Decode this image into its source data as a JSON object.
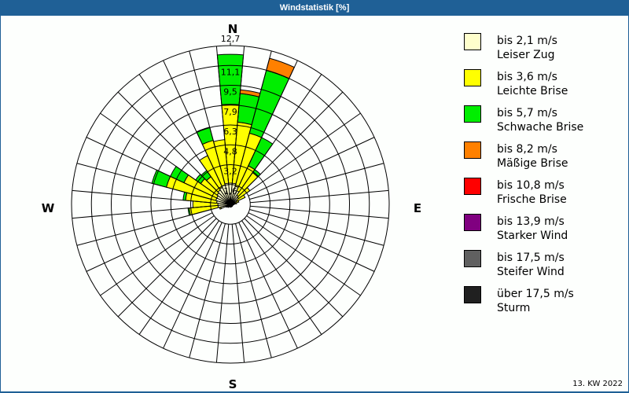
{
  "header": {
    "title": "Windstatistik [%]"
  },
  "footer": {
    "week_label": "13. KW 2022"
  },
  "compass": {
    "n": "N",
    "e": "E",
    "s": "S",
    "w": "W"
  },
  "legend": [
    {
      "speed": "bis 2,1 m/s",
      "name": "Leiser Zug",
      "color": "#ffffcc"
    },
    {
      "speed": "bis 3,6 m/s",
      "name": "Leichte Brise",
      "color": "#ffff00"
    },
    {
      "speed": "bis 5,7 m/s",
      "name": "Schwache Brise",
      "color": "#00ee00"
    },
    {
      "speed": "bis 8,2 m/s",
      "name": "Mäßige Brise",
      "color": "#ff8000"
    },
    {
      "speed": "bis 10,8 m/s",
      "name": "Frische Brise",
      "color": "#ff0000"
    },
    {
      "speed": "bis 13,9 m/s",
      "name": "Starker Wind",
      "color": "#800080"
    },
    {
      "speed": "bis 17,5 m/s",
      "name": "Steifer Wind",
      "color": "#606060"
    },
    {
      "speed": "über 17,5 m/s",
      "name": "Sturm",
      "color": "#202020"
    }
  ],
  "chart_data": {
    "type": "wind_rose",
    "title": "Windstatistik [%]",
    "ring_labels": [
      "1,6",
      "3,2",
      "4,8",
      "6,3",
      "7,9",
      "9,5",
      "11,1",
      "12,7"
    ],
    "rmax": 12.7,
    "sector_width_deg": 10,
    "series_names": [
      "Leiser Zug",
      "Leichte Brise",
      "Schwache Brise",
      "Mäßige Brise"
    ],
    "sectors": [
      {
        "dir": 0,
        "cum": [
          1.7,
          8.0,
          12.0,
          12.0
        ]
      },
      {
        "dir": 10,
        "cum": [
          1.7,
          6.6,
          8.9,
          9.2
        ]
      },
      {
        "dir": 20,
        "cum": [
          1.5,
          5.9,
          11.1,
          12.1
        ]
      },
      {
        "dir": 30,
        "cum": [
          1.2,
          3.4,
          5.9,
          5.9
        ]
      },
      {
        "dir": 40,
        "cum": [
          0.9,
          3.1,
          3.4,
          3.4
        ]
      },
      {
        "dir": 50,
        "cum": [
          0.8,
          1.9,
          1.9,
          1.9
        ]
      },
      {
        "dir": 60,
        "cum": [
          0.6,
          1.3,
          1.3,
          1.3
        ]
      },
      {
        "dir": 70,
        "cum": [
          0.4,
          0.7,
          0.7,
          0.7
        ]
      },
      {
        "dir": 80,
        "cum": [
          0.3,
          0.5,
          0.5,
          0.5
        ]
      },
      {
        "dir": 90,
        "cum": [
          0.2,
          0.3,
          0.3,
          0.3
        ]
      },
      {
        "dir": 100,
        "cum": [
          0.2,
          0.2,
          0.2,
          0.2
        ]
      },
      {
        "dir": 110,
        "cum": [
          0.2,
          0.2,
          0.2,
          0.2
        ]
      },
      {
        "dir": 120,
        "cum": [
          0.1,
          0.1,
          0.1,
          0.1
        ]
      },
      {
        "dir": 130,
        "cum": [
          0.1,
          0.1,
          0.1,
          0.1
        ]
      },
      {
        "dir": 140,
        "cum": [
          0.1,
          0.1,
          0.1,
          0.1
        ]
      },
      {
        "dir": 150,
        "cum": [
          0.1,
          0.1,
          0.1,
          0.1
        ]
      },
      {
        "dir": 160,
        "cum": [
          0.2,
          0.2,
          0.2,
          0.2
        ]
      },
      {
        "dir": 170,
        "cum": [
          0.2,
          0.2,
          0.2,
          0.2
        ]
      },
      {
        "dir": 180,
        "cum": [
          0.2,
          0.2,
          0.2,
          0.2
        ]
      },
      {
        "dir": 190,
        "cum": [
          0.2,
          0.2,
          0.2,
          0.2
        ]
      },
      {
        "dir": 200,
        "cum": [
          0.2,
          0.2,
          0.2,
          0.2
        ]
      },
      {
        "dir": 210,
        "cum": [
          0.2,
          0.2,
          0.2,
          0.2
        ]
      },
      {
        "dir": 220,
        "cum": [
          0.3,
          0.3,
          0.3,
          0.3
        ]
      },
      {
        "dir": 230,
        "cum": [
          0.3,
          0.3,
          0.3,
          0.3
        ]
      },
      {
        "dir": 240,
        "cum": [
          0.4,
          0.4,
          0.4,
          0.4
        ]
      },
      {
        "dir": 250,
        "cum": [
          0.8,
          0.9,
          0.9,
          0.9
        ]
      },
      {
        "dir": 260,
        "cum": [
          1.0,
          3.3,
          3.4,
          3.4
        ]
      },
      {
        "dir": 270,
        "cum": [
          1.0,
          3.0,
          3.0,
          3.0
        ]
      },
      {
        "dir": 280,
        "cum": [
          1.1,
          3.6,
          3.8,
          3.8
        ]
      },
      {
        "dir": 290,
        "cum": [
          1.2,
          5.3,
          6.5,
          6.5
        ]
      },
      {
        "dir": 300,
        "cum": [
          1.2,
          4.1,
          5.3,
          5.3
        ]
      },
      {
        "dir": 310,
        "cum": [
          1.3,
          2.9,
          3.4,
          3.4
        ]
      },
      {
        "dir": 320,
        "cum": [
          1.4,
          2.7,
          3.3,
          3.3
        ]
      },
      {
        "dir": 330,
        "cum": [
          1.5,
          4.3,
          4.3,
          4.3
        ]
      },
      {
        "dir": 340,
        "cum": [
          1.6,
          5.3,
          6.4,
          6.4
        ]
      },
      {
        "dir": 350,
        "cum": [
          1.7,
          5.2,
          5.2,
          5.2
        ]
      }
    ]
  }
}
